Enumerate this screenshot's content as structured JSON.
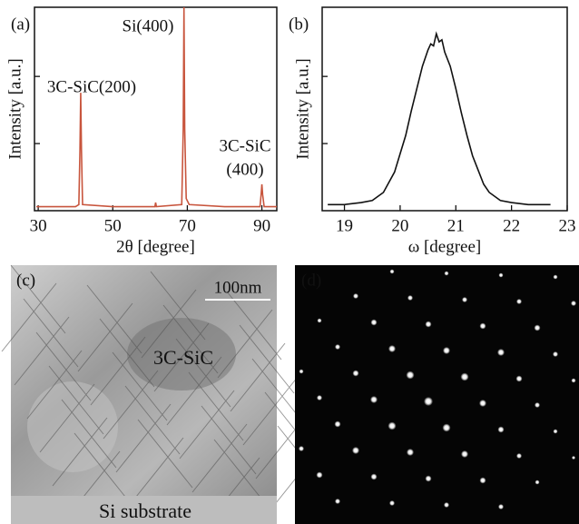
{
  "chart_data": [
    {
      "type": "line",
      "panel_label": "(a)",
      "xlabel": "2θ [degree]",
      "ylabel": "Intensity [a.u.]",
      "xlim": [
        29,
        94
      ],
      "xticks": [
        30,
        50,
        70,
        90
      ],
      "ylim": [
        0,
        100
      ],
      "yticks": [
        {
          "value": 33,
          "label": null
        },
        {
          "value": 66,
          "label": null
        }
      ],
      "annotations": [
        "3C-SiC(200)",
        "Si(400)",
        "3C-SiC",
        "(400)"
      ],
      "series": [
        {
          "color": "#c8553d",
          "x": [
            29.5,
            35,
            40,
            40.9,
            41.2,
            41.4,
            41.6,
            41.9,
            50,
            61.3,
            61.5,
            61.7,
            68.5,
            68.9,
            69.1,
            69.3,
            69.7,
            70.5,
            80,
            89.5,
            89.8,
            90.0,
            90.2,
            90.6,
            94
          ],
          "values": [
            2,
            2,
            2,
            3,
            30,
            58,
            30,
            3,
            2,
            2,
            4,
            2,
            3,
            40,
            100,
            40,
            6,
            3,
            2,
            2,
            8,
            13,
            8,
            2,
            2
          ]
        }
      ]
    },
    {
      "type": "line",
      "panel_label": "(b)",
      "xlabel": "ω [degree]",
      "ylabel": "Intensity [a.u.]",
      "xlim": [
        18.6,
        23.0
      ],
      "xticks": [
        19,
        20,
        21,
        22,
        23
      ],
      "ylim": [
        0,
        100
      ],
      "yticks": [
        {
          "value": 33,
          "label": null
        },
        {
          "value": 66,
          "label": null
        }
      ],
      "series": [
        {
          "color": "#111111",
          "x": [
            18.7,
            19.0,
            19.3,
            19.5,
            19.7,
            19.8,
            19.9,
            20.0,
            20.1,
            20.2,
            20.3,
            20.4,
            20.5,
            20.55,
            20.6,
            20.65,
            20.7,
            20.75,
            20.8,
            20.9,
            21.0,
            21.1,
            21.2,
            21.3,
            21.4,
            21.5,
            21.6,
            21.8,
            22.0,
            22.3,
            22.7
          ],
          "values": [
            3,
            3,
            4,
            5,
            9,
            14,
            19,
            28,
            37,
            49,
            60,
            71,
            79,
            82,
            81,
            87,
            83,
            84,
            78,
            71,
            60,
            48,
            37,
            27,
            20,
            13,
            9,
            5,
            4,
            3,
            3
          ]
        }
      ]
    }
  ],
  "images": [
    {
      "panel_label": "(c)",
      "scale_bar": "100nm",
      "labels": [
        "3C-SiC",
        "Si substrate"
      ]
    },
    {
      "panel_label": "(d)"
    }
  ]
}
